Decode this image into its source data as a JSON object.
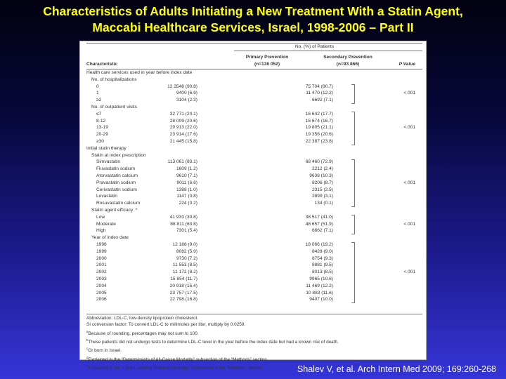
{
  "title": {
    "line1": "Characteristics of Adults Initiating a New Treatment With a Statin Agent,",
    "line2": "Maccabi Healthcare Services, Israel, 1998-2006 – Part II"
  },
  "table": {
    "header": {
      "spanner": "No. (%) of Patients",
      "characteristic": "Characteristic",
      "primary_line1": "Primary Prevention",
      "primary_line2": "(n=136 052)",
      "secondary_line1": "Secondary Prevention",
      "secondary_line2": "(n=93 866)",
      "pvalue": "P Value"
    },
    "rows": [
      {
        "label": "Health care services used in year before index date",
        "indent": 0,
        "primary": "",
        "secondary": "",
        "p": ""
      },
      {
        "label": "No. of hospitalizations",
        "indent": 1,
        "primary": "",
        "secondary": "",
        "p": ""
      },
      {
        "label": "0",
        "indent": 2,
        "primary": "12 3548 (90.8)",
        "secondary": "75 704 (80.7)",
        "p": ""
      },
      {
        "label": "1",
        "indent": 2,
        "primary": "9400 (6.9)",
        "secondary": "11 470 (12.2)",
        "p": "<.001"
      },
      {
        "label": "≥2",
        "indent": 2,
        "primary": "3104 (2.3)",
        "secondary": "6692 (7.1)",
        "p": ""
      },
      {
        "label": "No. of outpatient visits",
        "indent": 1,
        "primary": "",
        "secondary": "",
        "p": ""
      },
      {
        "label": "≤7",
        "indent": 2,
        "primary": "32 771 (24.1)",
        "secondary": "16 642 (17.7)",
        "p": ""
      },
      {
        "label": "8-12",
        "indent": 2,
        "primary": "28 009 (20.6)",
        "secondary": "15 674 (16.7)",
        "p": ""
      },
      {
        "label": "13-19",
        "indent": 2,
        "primary": "29 913 (22.0)",
        "secondary": "19 805 (21.1)",
        "p": "<.001"
      },
      {
        "label": "20-29",
        "indent": 2,
        "primary": "23 914 (17.6)",
        "secondary": "19 358 (20.6)",
        "p": ""
      },
      {
        "label": "≥30",
        "indent": 2,
        "primary": "21 445 (15.8)",
        "secondary": "22 387 (23.8)",
        "p": ""
      },
      {
        "label": "Initial statin therapy",
        "indent": 0,
        "primary": "",
        "secondary": "",
        "p": ""
      },
      {
        "label": "Statin at index prescription",
        "indent": 1,
        "primary": "",
        "secondary": "",
        "p": ""
      },
      {
        "label": "Simvastatin",
        "indent": 2,
        "primary": "113 061 (83.1)",
        "secondary": "68 460 (72.9)",
        "p": ""
      },
      {
        "label": "Fluvastatin sodium",
        "indent": 2,
        "primary": "1609 (1.2)",
        "secondary": "2212 (2.4)",
        "p": ""
      },
      {
        "label": "Atorvastatin calcium",
        "indent": 2,
        "primary": "9610 (7.1)",
        "secondary": "9638 (10.3)",
        "p": ""
      },
      {
        "label": "Pravastatin sodium",
        "indent": 2,
        "primary": "9011 (6.6)",
        "secondary": "8206 (8.7)",
        "p": "<.001"
      },
      {
        "label": "Cerivastatin sodium",
        "indent": 2,
        "primary": "1388 (1.0)",
        "secondary": "2315 (2.5)",
        "p": ""
      },
      {
        "label": "Lovastatin",
        "indent": 2,
        "primary": "1147 (0.8)",
        "secondary": "2899 (3.1)",
        "p": ""
      },
      {
        "label": "Rosuvastatin calcium",
        "indent": 2,
        "primary": "224 (0.2)",
        "secondary": "134 (0.1)",
        "p": ""
      },
      {
        "label": "Statin agent efficacy",
        "sup": "e",
        "indent": 1,
        "primary": "",
        "secondary": "",
        "p": ""
      },
      {
        "label": "Low",
        "indent": 2,
        "primary": "41 933 (30.8)",
        "secondary": "38 517 (41.0)",
        "p": ""
      },
      {
        "label": "Moderate",
        "indent": 2,
        "primary": "86 811 (63.8)",
        "secondary": "48 657 (51.9)",
        "p": "<.001"
      },
      {
        "label": "High",
        "indent": 2,
        "primary": "7301 (5.4)",
        "secondary": "6662 (7.1)",
        "p": ""
      },
      {
        "label": "Year of index date",
        "indent": 1,
        "primary": "",
        "secondary": "",
        "p": ""
      },
      {
        "label": "1998",
        "indent": 2,
        "primary": "12 188 (9.0)",
        "secondary": "18 066 (19.2)",
        "p": ""
      },
      {
        "label": "1999",
        "indent": 2,
        "primary": "8082 (5.9)",
        "secondary": "8428 (9.0)",
        "p": ""
      },
      {
        "label": "2000",
        "indent": 2,
        "primary": "9730 (7.2)",
        "secondary": "8754 (9.3)",
        "p": ""
      },
      {
        "label": "2001",
        "indent": 2,
        "primary": "11 553 (8.5)",
        "secondary": "8881 (9.5)",
        "p": ""
      },
      {
        "label": "2002",
        "indent": 2,
        "primary": "11 172 (8.2)",
        "secondary": "8013 (8.5)",
        "p": "<.001"
      },
      {
        "label": "2003",
        "indent": 2,
        "primary": "15 854 (11.7)",
        "secondary": "9965 (10.6)",
        "p": ""
      },
      {
        "label": "2004",
        "indent": 2,
        "primary": "20 918 (15.4)",
        "secondary": "11 469 (12.2)",
        "p": ""
      },
      {
        "label": "2005",
        "indent": 2,
        "primary": "23 757 (17.5)",
        "secondary": "10 883 (11.6)",
        "p": ""
      },
      {
        "label": "2006",
        "indent": 2,
        "primary": "22 798 (16.8)",
        "secondary": "9407 (10.0)",
        "p": ""
      }
    ],
    "groups": [
      {
        "first": 2,
        "last": 4
      },
      {
        "first": 6,
        "last": 10
      },
      {
        "first": 13,
        "last": 19
      },
      {
        "first": 21,
        "last": 23
      },
      {
        "first": 25,
        "last": 33
      }
    ]
  },
  "footnotes": [
    {
      "mark": "",
      "text": "Abbreviation: LDL-C, low-density lipoprotein cholesterol."
    },
    {
      "mark": "",
      "text": "SI conversion factor: To convert LDL-C to millimoles per liter, multiply by 0.0259."
    },
    {
      "mark": "a",
      "text": "Because of rounding, percentages may not sum to 100."
    },
    {
      "mark": "b",
      "text": "These patients did not undergo tests to determine LDL-C level in the year before the index date but had a known risk of death."
    },
    {
      "mark": "c",
      "text": "Or born in Israel."
    },
    {
      "mark": "d",
      "text": "Explained in the “Determinants of All-Cause Mortality” subsection of the “Methods” section."
    },
    {
      "mark": "e",
      "text": "Explained in the “Lipid-Lowering Pharmacotherapy” subsection of the “Methods” section."
    }
  ],
  "citation": "Shalev V, et al. Arch Intern Med 2009; 169:260-268"
}
